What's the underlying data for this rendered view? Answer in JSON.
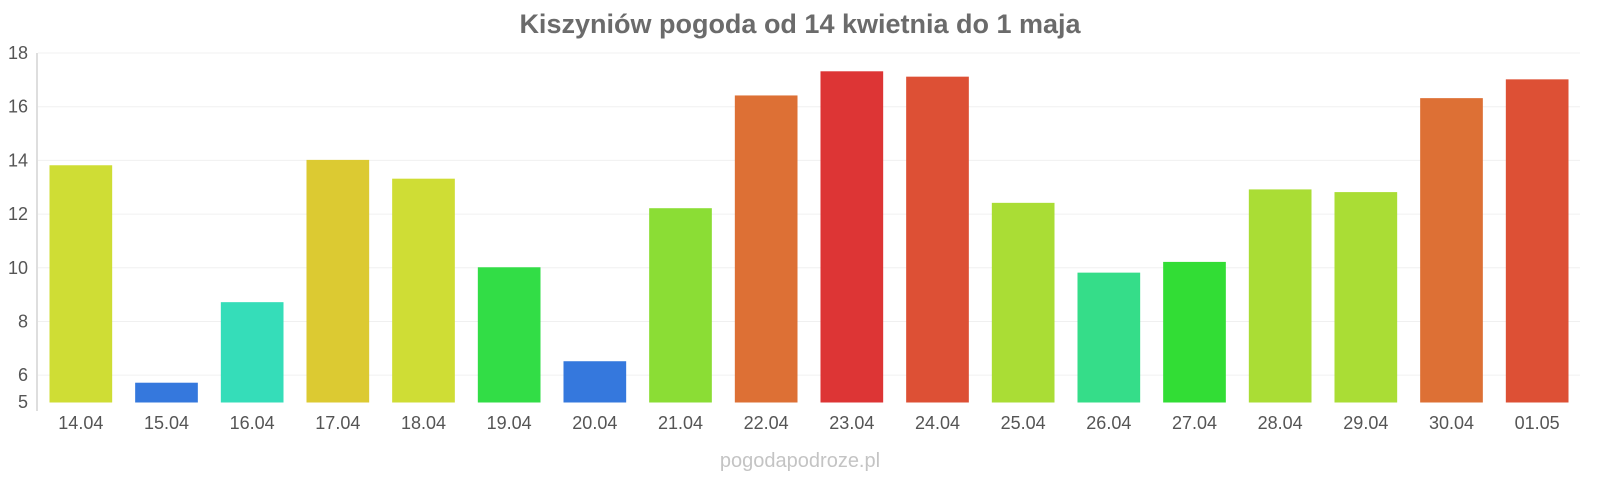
{
  "chart_data": {
    "type": "bar",
    "title": "Kiszyniów pogoda od 14 kwietnia do 1 maja",
    "xlabel": "",
    "ylabel": "",
    "ylim": [
      5,
      18
    ],
    "yticks": [
      5,
      6,
      8,
      10,
      12,
      14,
      16,
      18
    ],
    "grid": true,
    "categories": [
      "14.04",
      "15.04",
      "16.04",
      "17.04",
      "18.04",
      "19.04",
      "20.04",
      "21.04",
      "22.04",
      "23.04",
      "24.04",
      "25.04",
      "26.04",
      "27.04",
      "28.04",
      "29.04",
      "30.04",
      "01.05"
    ],
    "values": [
      13.8,
      5.7,
      8.7,
      14.0,
      13.3,
      10.0,
      6.5,
      12.2,
      16.4,
      17.3,
      17.1,
      12.4,
      9.8,
      10.2,
      12.9,
      12.8,
      16.3,
      17.0
    ],
    "colors": [
      "#cfdd35",
      "#3578dd",
      "#35ddb9",
      "#dcca32",
      "#cfdd35",
      "#32dd46",
      "#3578dd",
      "#8bdd35",
      "#dd7035",
      "#dd3535",
      "#dd5035",
      "#aadd35",
      "#35dd89",
      "#32dd35",
      "#aadd35",
      "#aadd35",
      "#dd7035",
      "#dd5035"
    ]
  },
  "footer": {
    "credit": "pogodapodroze.pl"
  }
}
